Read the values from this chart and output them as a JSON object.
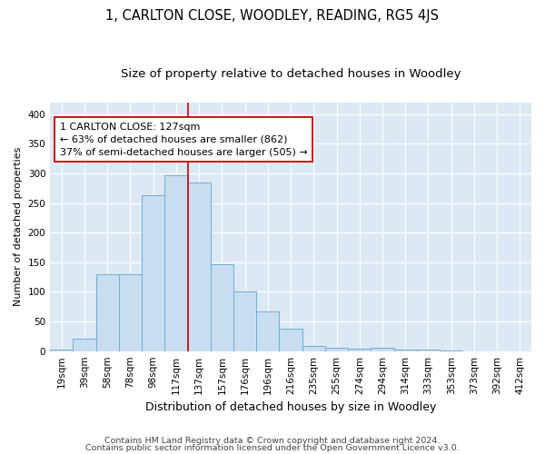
{
  "title": "1, CARLTON CLOSE, WOODLEY, READING, RG5 4JS",
  "subtitle": "Size of property relative to detached houses in Woodley",
  "xlabel": "Distribution of detached houses by size in Woodley",
  "ylabel": "Number of detached properties",
  "footer1": "Contains HM Land Registry data © Crown copyright and database right 2024.",
  "footer2": "Contains public sector information licensed under the Open Government Licence v3.0.",
  "bar_labels": [
    "19sqm",
    "39sqm",
    "58sqm",
    "78sqm",
    "98sqm",
    "117sqm",
    "137sqm",
    "157sqm",
    "176sqm",
    "196sqm",
    "216sqm",
    "235sqm",
    "255sqm",
    "274sqm",
    "294sqm",
    "314sqm",
    "333sqm",
    "353sqm",
    "373sqm",
    "392sqm",
    "412sqm"
  ],
  "bar_values": [
    2,
    21,
    130,
    130,
    264,
    297,
    285,
    147,
    100,
    67,
    38,
    8,
    5,
    4,
    5,
    2,
    2,
    1,
    0,
    0,
    0
  ],
  "bar_color": "#c9ddf0",
  "bar_edge_color": "#6aaed6",
  "vline_x": 5.5,
  "vline_color": "#cc0000",
  "annotation_line1": "1 CARLTON CLOSE: 127sqm",
  "annotation_line2": "← 63% of detached houses are smaller (862)",
  "annotation_line3": "37% of semi-detached houses are larger (505) →",
  "annotation_box_color": "#ffffff",
  "annotation_box_edge_color": "#cc0000",
  "ylim": [
    0,
    420
  ],
  "yticks": [
    0,
    50,
    100,
    150,
    200,
    250,
    300,
    350,
    400
  ],
  "fig_bg_color": "#ffffff",
  "plot_bg_color": "#dce9f5",
  "grid_color": "#ffffff",
  "title_fontsize": 10.5,
  "subtitle_fontsize": 9.5,
  "xlabel_fontsize": 9,
  "ylabel_fontsize": 8,
  "tick_fontsize": 7.5,
  "annotation_fontsize": 8,
  "footer_fontsize": 6.8
}
